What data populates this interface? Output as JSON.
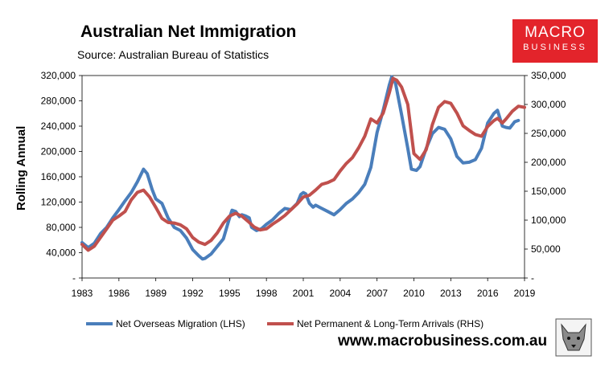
{
  "header": {
    "title": "Australian Net Immigration",
    "subtitle": "Source: Australian Bureau of Statistics"
  },
  "logo": {
    "line1": "MACRO",
    "line2": "BUSINESS",
    "color": "#e3242b"
  },
  "footer": {
    "website": "www.macrobusiness.com.au"
  },
  "chart_data": {
    "type": "line",
    "title": "Australian Net Immigration",
    "ylabel": "Rolling Annual",
    "xlabel": "",
    "xlim": [
      1983,
      2019
    ],
    "x_ticks": [
      "1983",
      "1986",
      "1989",
      "1992",
      "1995",
      "1998",
      "2001",
      "2004",
      "2007",
      "2010",
      "2013",
      "2016",
      "2019"
    ],
    "ylim_left": [
      0,
      320000
    ],
    "ylim_right": [
      0,
      350000
    ],
    "y_ticks_left": [
      "-",
      "40,000",
      "80,000",
      "120,000",
      "160,000",
      "200,000",
      "240,000",
      "280,000",
      "320,000"
    ],
    "y_ticks_right": [
      "-",
      "50,000",
      "100,000",
      "150,000",
      "200,000",
      "250,000",
      "300,000",
      "350,000"
    ],
    "grid": false,
    "legend_position": "bottom",
    "series": [
      {
        "name": "Net Overseas Migration (LHS)",
        "axis": "left",
        "color": "#4a7ebb",
        "points": [
          [
            1983.0,
            56000
          ],
          [
            1983.5,
            48000
          ],
          [
            1984.0,
            55000
          ],
          [
            1984.5,
            70000
          ],
          [
            1985.0,
            80000
          ],
          [
            1985.5,
            95000
          ],
          [
            1986.0,
            108000
          ],
          [
            1986.5,
            122000
          ],
          [
            1987.0,
            135000
          ],
          [
            1987.5,
            152000
          ],
          [
            1988.0,
            172000
          ],
          [
            1988.3,
            165000
          ],
          [
            1988.7,
            140000
          ],
          [
            1989.0,
            125000
          ],
          [
            1989.5,
            118000
          ],
          [
            1990.0,
            95000
          ],
          [
            1990.5,
            80000
          ],
          [
            1991.0,
            75000
          ],
          [
            1991.5,
            63000
          ],
          [
            1992.0,
            45000
          ],
          [
            1992.5,
            35000
          ],
          [
            1992.8,
            30000
          ],
          [
            1993.0,
            31000
          ],
          [
            1993.5,
            38000
          ],
          [
            1994.0,
            50000
          ],
          [
            1994.5,
            62000
          ],
          [
            1995.0,
            95000
          ],
          [
            1995.2,
            107000
          ],
          [
            1995.5,
            105000
          ],
          [
            1995.8,
            97000
          ],
          [
            1996.0,
            100000
          ],
          [
            1996.3,
            98000
          ],
          [
            1996.6,
            95000
          ],
          [
            1996.8,
            80000
          ],
          [
            1997.2,
            75000
          ],
          [
            1997.6,
            78000
          ],
          [
            1998.0,
            85000
          ],
          [
            1998.5,
            92000
          ],
          [
            1999.0,
            102000
          ],
          [
            1999.5,
            110000
          ],
          [
            2000.0,
            108000
          ],
          [
            2000.5,
            118000
          ],
          [
            2000.8,
            132000
          ],
          [
            2001.0,
            135000
          ],
          [
            2001.2,
            133000
          ],
          [
            2001.5,
            118000
          ],
          [
            2001.8,
            112000
          ],
          [
            2002.0,
            115000
          ],
          [
            2002.5,
            110000
          ],
          [
            2003.0,
            105000
          ],
          [
            2003.5,
            100000
          ],
          [
            2004.0,
            108000
          ],
          [
            2004.5,
            118000
          ],
          [
            2005.0,
            125000
          ],
          [
            2005.5,
            135000
          ],
          [
            2006.0,
            148000
          ],
          [
            2006.5,
            175000
          ],
          [
            2007.0,
            230000
          ],
          [
            2007.5,
            265000
          ],
          [
            2008.0,
            305000
          ],
          [
            2008.2,
            318000
          ],
          [
            2008.5,
            308000
          ],
          [
            2009.0,
            258000
          ],
          [
            2009.5,
            205000
          ],
          [
            2009.8,
            172000
          ],
          [
            2010.2,
            170000
          ],
          [
            2010.5,
            176000
          ],
          [
            2011.0,
            205000
          ],
          [
            2011.5,
            228000
          ],
          [
            2012.0,
            238000
          ],
          [
            2012.5,
            235000
          ],
          [
            2013.0,
            220000
          ],
          [
            2013.5,
            192000
          ],
          [
            2014.0,
            182000
          ],
          [
            2014.5,
            183000
          ],
          [
            2015.0,
            187000
          ],
          [
            2015.5,
            205000
          ],
          [
            2016.0,
            245000
          ],
          [
            2016.5,
            260000
          ],
          [
            2016.8,
            265000
          ],
          [
            2017.2,
            240000
          ],
          [
            2017.5,
            238000
          ],
          [
            2017.8,
            237000
          ],
          [
            2018.2,
            247000
          ],
          [
            2018.5,
            249000
          ]
        ]
      },
      {
        "name": "Net Permanent & Long-Term Arrivals (RHS)",
        "axis": "right",
        "color": "#c0504d",
        "points": [
          [
            1983.0,
            58000
          ],
          [
            1983.5,
            48000
          ],
          [
            1984.0,
            55000
          ],
          [
            1984.5,
            70000
          ],
          [
            1985.0,
            85000
          ],
          [
            1985.5,
            100000
          ],
          [
            1986.0,
            107000
          ],
          [
            1986.5,
            115000
          ],
          [
            1987.0,
            135000
          ],
          [
            1987.5,
            148000
          ],
          [
            1988.0,
            152000
          ],
          [
            1988.5,
            140000
          ],
          [
            1989.0,
            122000
          ],
          [
            1989.5,
            103000
          ],
          [
            1990.0,
            96000
          ],
          [
            1990.5,
            95000
          ],
          [
            1991.0,
            92000
          ],
          [
            1991.5,
            85000
          ],
          [
            1992.0,
            70000
          ],
          [
            1992.5,
            62000
          ],
          [
            1993.0,
            58000
          ],
          [
            1993.5,
            65000
          ],
          [
            1994.0,
            78000
          ],
          [
            1994.5,
            95000
          ],
          [
            1995.0,
            107000
          ],
          [
            1995.5,
            112000
          ],
          [
            1996.0,
            107000
          ],
          [
            1996.5,
            98000
          ],
          [
            1997.0,
            88000
          ],
          [
            1997.5,
            83000
          ],
          [
            1998.0,
            85000
          ],
          [
            1998.5,
            93000
          ],
          [
            1999.0,
            100000
          ],
          [
            1999.5,
            108000
          ],
          [
            2000.0,
            118000
          ],
          [
            2000.5,
            128000
          ],
          [
            2001.0,
            140000
          ],
          [
            2001.5,
            143000
          ],
          [
            2002.0,
            152000
          ],
          [
            2002.5,
            162000
          ],
          [
            2003.0,
            165000
          ],
          [
            2003.5,
            170000
          ],
          [
            2004.0,
            185000
          ],
          [
            2004.5,
            198000
          ],
          [
            2005.0,
            208000
          ],
          [
            2005.5,
            225000
          ],
          [
            2006.0,
            245000
          ],
          [
            2006.5,
            275000
          ],
          [
            2007.0,
            268000
          ],
          [
            2007.5,
            285000
          ],
          [
            2008.0,
            320000
          ],
          [
            2008.3,
            345000
          ],
          [
            2008.6,
            342000
          ],
          [
            2009.0,
            330000
          ],
          [
            2009.5,
            300000
          ],
          [
            2010.0,
            215000
          ],
          [
            2010.5,
            205000
          ],
          [
            2011.0,
            222000
          ],
          [
            2011.5,
            265000
          ],
          [
            2012.0,
            295000
          ],
          [
            2012.5,
            305000
          ],
          [
            2013.0,
            302000
          ],
          [
            2013.5,
            285000
          ],
          [
            2014.0,
            263000
          ],
          [
            2014.5,
            255000
          ],
          [
            2015.0,
            248000
          ],
          [
            2015.5,
            245000
          ],
          [
            2016.0,
            262000
          ],
          [
            2016.5,
            272000
          ],
          [
            2016.8,
            276000
          ],
          [
            2017.2,
            268000
          ],
          [
            2017.5,
            275000
          ],
          [
            2018.0,
            288000
          ],
          [
            2018.5,
            297000
          ],
          [
            2019.0,
            295000
          ]
        ]
      }
    ]
  }
}
